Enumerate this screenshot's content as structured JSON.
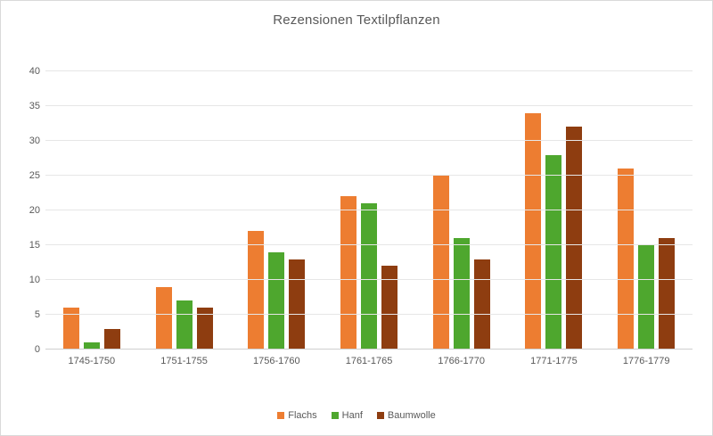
{
  "chart_data": {
    "type": "bar",
    "title": "Rezensionen Textilpflanzen",
    "categories": [
      "1745-1750",
      "1751-1755",
      "1756-1760",
      "1761-1765",
      "1766-1770",
      "1771-1775",
      "1776-1779"
    ],
    "series": [
      {
        "name": "Flachs",
        "color": "#ED7D31",
        "values": [
          6,
          9,
          17,
          22,
          25,
          34,
          26
        ]
      },
      {
        "name": "Hanf",
        "color": "#4EA72E",
        "values": [
          1,
          7,
          14,
          21,
          16,
          28,
          15
        ]
      },
      {
        "name": "Baumwolle",
        "color": "#8E3D10",
        "values": [
          3,
          6,
          13,
          12,
          13,
          32,
          16
        ]
      }
    ],
    "xlabel": "",
    "ylabel": "",
    "ylim": [
      0,
      40
    ],
    "yticks": [
      0,
      5,
      10,
      15,
      20,
      25,
      30,
      35,
      40
    ],
    "grid": true,
    "legend_position": "bottom"
  },
  "colors": {
    "title_text": "#595959",
    "axis_text": "#595959",
    "gridline": "#e6e6e6",
    "chart_border": "#d9d9d9"
  }
}
